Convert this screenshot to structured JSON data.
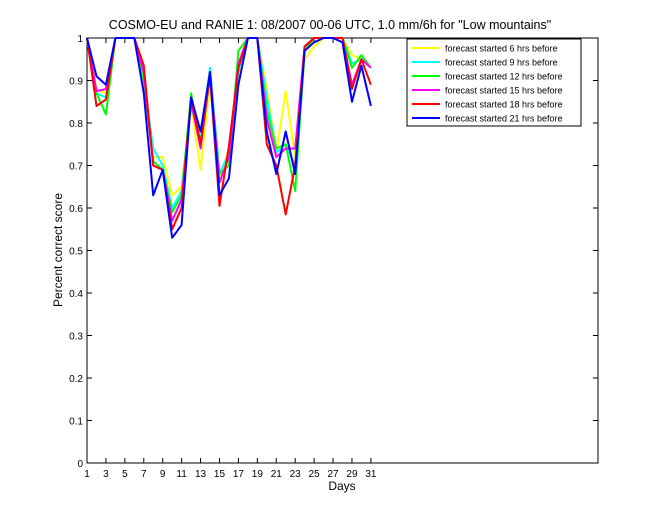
{
  "chart_data": {
    "type": "line",
    "title": "COSMO-EU and RANIE 1: 08/2007 00-06 UTC, 1.0 mm/6h for \"Low mountains\"",
    "xlabel": "Days",
    "ylabel": "Percent correct score",
    "xlim": [
      1,
      55
    ],
    "ylim": [
      0,
      1
    ],
    "xticks": [
      1,
      3,
      5,
      7,
      9,
      11,
      13,
      15,
      17,
      19,
      21,
      23,
      25,
      27,
      29,
      31
    ],
    "yticks": [
      0,
      0.1,
      0.2,
      0.3,
      0.4,
      0.5,
      0.6,
      0.7,
      0.8,
      0.9,
      1
    ],
    "grid": false,
    "legend_position": "top-right",
    "x": [
      1,
      2,
      3,
      4,
      5,
      6,
      7,
      8,
      9,
      10,
      11,
      12,
      13,
      14,
      15,
      16,
      17,
      18,
      19,
      20,
      21,
      22,
      23,
      24,
      25,
      26,
      27,
      28,
      29,
      30,
      31
    ],
    "series": [
      {
        "name": "forecast started 6 hrs before",
        "color": "#ffff00",
        "values": [
          1.0,
          0.88,
          0.87,
          1.0,
          1.0,
          1.0,
          0.88,
          0.72,
          0.72,
          0.63,
          0.65,
          0.84,
          0.69,
          0.9,
          0.67,
          0.74,
          0.9,
          1.0,
          1.0,
          0.88,
          0.73,
          0.875,
          0.72,
          0.95,
          0.98,
          1.0,
          1.0,
          1.0,
          0.96,
          0.95,
          0.93
        ]
      },
      {
        "name": "forecast started 9 hrs before",
        "color": "#00ffff",
        "values": [
          1.0,
          0.87,
          0.86,
          1.0,
          1.0,
          1.0,
          0.9,
          0.74,
          0.7,
          0.6,
          0.64,
          0.84,
          0.76,
          0.93,
          0.68,
          0.73,
          0.92,
          1.0,
          1.0,
          0.86,
          0.73,
          0.75,
          0.7,
          0.97,
          0.99,
          1.0,
          1.0,
          1.0,
          0.94,
          0.95,
          0.93
        ]
      },
      {
        "name": "forecast started 12 hrs before",
        "color": "#00ff00",
        "values": [
          1.0,
          0.87,
          0.82,
          1.0,
          1.0,
          1.0,
          0.9,
          0.71,
          0.69,
          0.59,
          0.63,
          0.87,
          0.75,
          0.92,
          0.68,
          0.7,
          0.97,
          1.0,
          1.0,
          0.83,
          0.74,
          0.75,
          0.64,
          0.97,
          1.0,
          1.0,
          1.0,
          1.0,
          0.93,
          0.96,
          0.93
        ]
      },
      {
        "name": "forecast started 15 hrs before",
        "color": "#ff00ff",
        "values": [
          1.0,
          0.875,
          0.88,
          1.0,
          1.0,
          1.0,
          0.92,
          0.7,
          0.69,
          0.57,
          0.62,
          0.85,
          0.74,
          0.92,
          0.66,
          0.72,
          0.94,
          1.0,
          1.0,
          0.81,
          0.72,
          0.74,
          0.74,
          0.98,
          1.0,
          1.0,
          1.0,
          1.0,
          0.89,
          0.95,
          0.93
        ]
      },
      {
        "name": "forecast started 18 hrs before",
        "color": "#ff0000",
        "values": [
          1.0,
          0.84,
          0.855,
          1.0,
          1.0,
          1.0,
          0.935,
          0.7,
          0.69,
          0.55,
          0.6,
          0.86,
          0.75,
          0.91,
          0.605,
          0.745,
          0.93,
          1.0,
          1.0,
          0.75,
          0.7,
          0.585,
          0.7,
          0.98,
          1.0,
          1.0,
          1.0,
          1.0,
          0.88,
          0.95,
          0.89
        ]
      },
      {
        "name": "forecast started 21 hrs before",
        "color": "#0000ff",
        "values": [
          1.0,
          0.91,
          0.89,
          1.0,
          1.0,
          1.0,
          0.87,
          0.63,
          0.69,
          0.53,
          0.56,
          0.86,
          0.78,
          0.92,
          0.63,
          0.67,
          0.89,
          1.0,
          1.0,
          0.78,
          0.68,
          0.78,
          0.68,
          0.97,
          0.99,
          1.0,
          1.0,
          0.99,
          0.85,
          0.935,
          0.84
        ]
      }
    ]
  }
}
